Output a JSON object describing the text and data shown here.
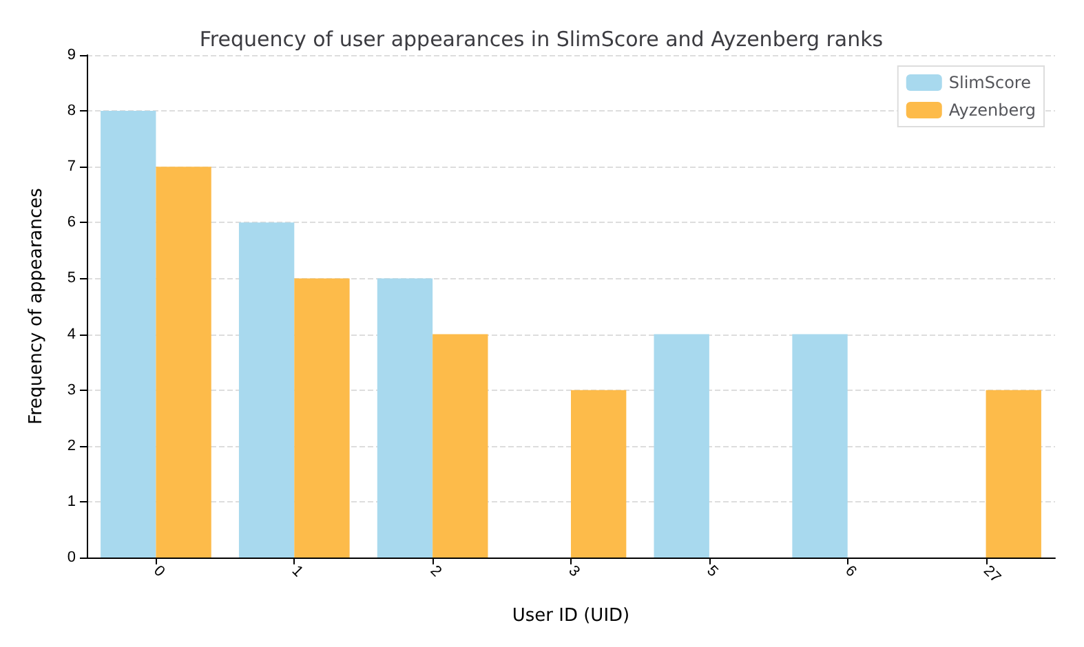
{
  "chart_data": {
    "type": "bar",
    "title": "Frequency of user appearances in SlimScore and Ayzenberg ranks",
    "xlabel": "User ID (UID)",
    "ylabel": "Frequency of appearances",
    "categories": [
      "0",
      "1",
      "2",
      "3",
      "5",
      "6",
      "27"
    ],
    "series": [
      {
        "name": "SlimScore",
        "color": "#a8d9ee",
        "values": [
          8,
          6,
          5,
          0,
          4,
          4,
          0
        ]
      },
      {
        "name": "Ayzenberg",
        "color": "#fdbb4a",
        "values": [
          7,
          5,
          4,
          3,
          0,
          0,
          3
        ]
      }
    ],
    "ylim": [
      0,
      9
    ],
    "yticks": [
      0,
      1,
      2,
      3,
      4,
      5,
      6,
      7,
      8,
      9
    ],
    "grid": "y",
    "legend": "top right"
  }
}
